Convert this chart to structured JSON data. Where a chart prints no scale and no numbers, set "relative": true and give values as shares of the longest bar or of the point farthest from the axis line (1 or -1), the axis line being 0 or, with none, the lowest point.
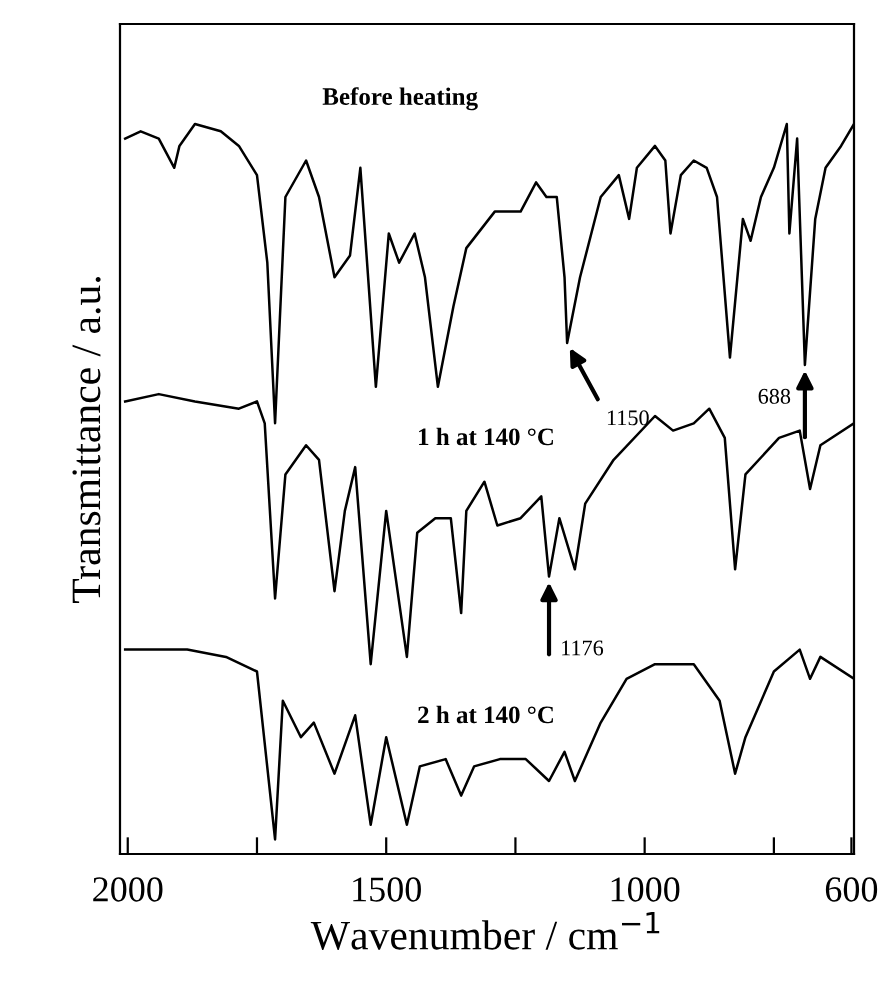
{
  "chart_data": {
    "type": "line",
    "relative": true,
    "xlabel": "Wavenumber / cm$^{−1}$",
    "ylabel": "Transmittance / a.u.",
    "xlim": [
      2015,
      595
    ],
    "xticks": [
      2000,
      {
        "value": 1750,
        "label": null
      },
      1500,
      {
        "value": 1250,
        "label": null
      },
      1000,
      {
        "value": 750,
        "label": null
      },
      600
    ],
    "grid": false,
    "legend": false,
    "marker": "none",
    "line_style": "solid",
    "series": [
      {
        "name": "Before heating",
        "color": "#000000",
        "x": [
          2005,
          1975,
          1940,
          1910,
          1900,
          1870,
          1820,
          1785,
          1750,
          1730,
          1715,
          1695,
          1655,
          1630,
          1600,
          1570,
          1550,
          1520,
          1495,
          1475,
          1445,
          1425,
          1400,
          1370,
          1345,
          1290,
          1240,
          1210,
          1190,
          1170,
          1155,
          1150,
          1125,
          1085,
          1050,
          1030,
          1015,
          980,
          960,
          950,
          930,
          905,
          880,
          860,
          835,
          810,
          795,
          775,
          750,
          725,
          720,
          705,
          690,
          670,
          650,
          620,
          595
        ],
        "values": [
          0.98,
          0.99,
          0.98,
          0.94,
          0.97,
          1.0,
          0.99,
          0.97,
          0.93,
          0.81,
          0.59,
          0.9,
          0.95,
          0.9,
          0.79,
          0.82,
          0.94,
          0.64,
          0.85,
          0.81,
          0.85,
          0.79,
          0.64,
          0.75,
          0.83,
          0.88,
          0.88,
          0.92,
          0.9,
          0.9,
          0.79,
          0.7,
          0.79,
          0.9,
          0.93,
          0.87,
          0.94,
          0.97,
          0.95,
          0.85,
          0.93,
          0.95,
          0.94,
          0.9,
          0.68,
          0.87,
          0.84,
          0.9,
          0.94,
          1.0,
          0.85,
          0.98,
          0.67,
          0.87,
          0.94,
          0.97,
          1.0
        ]
      },
      {
        "name": "1 h at 140 °C",
        "color": "#000000",
        "x": [
          2005,
          1940,
          1870,
          1785,
          1750,
          1735,
          1715,
          1695,
          1655,
          1630,
          1600,
          1580,
          1560,
          1530,
          1500,
          1460,
          1440,
          1405,
          1375,
          1355,
          1345,
          1310,
          1285,
          1240,
          1200,
          1185,
          1165,
          1135,
          1115,
          1060,
          980,
          945,
          905,
          875,
          845,
          825,
          805,
          740,
          700,
          680,
          660,
          595
        ],
        "values": [
          0.62,
          0.63,
          0.62,
          0.61,
          0.62,
          0.59,
          0.35,
          0.52,
          0.56,
          0.54,
          0.36,
          0.47,
          0.53,
          0.26,
          0.47,
          0.27,
          0.44,
          0.46,
          0.46,
          0.33,
          0.47,
          0.51,
          0.45,
          0.46,
          0.49,
          0.38,
          0.46,
          0.39,
          0.48,
          0.54,
          0.6,
          0.58,
          0.59,
          0.61,
          0.57,
          0.39,
          0.52,
          0.57,
          0.58,
          0.5,
          0.56,
          0.59
        ]
      },
      {
        "name": "2 h at 140 °C",
        "color": "#000000",
        "x": [
          2005,
          1885,
          1810,
          1750,
          1715,
          1700,
          1665,
          1640,
          1600,
          1560,
          1530,
          1500,
          1460,
          1435,
          1385,
          1355,
          1330,
          1280,
          1230,
          1185,
          1155,
          1135,
          1085,
          1035,
          980,
          905,
          855,
          825,
          805,
          750,
          700,
          680,
          660,
          595
        ],
        "values": [
          0.28,
          0.28,
          0.27,
          0.25,
          0.02,
          0.21,
          0.16,
          0.18,
          0.11,
          0.19,
          0.04,
          0.16,
          0.04,
          0.12,
          0.13,
          0.08,
          0.12,
          0.13,
          0.13,
          0.1,
          0.14,
          0.1,
          0.18,
          0.24,
          0.26,
          0.26,
          0.21,
          0.11,
          0.16,
          0.25,
          0.28,
          0.24,
          0.27,
          0.24
        ]
      }
    ],
    "annotations": [
      {
        "text": "1150",
        "x": 1150,
        "y": 0.7
      },
      {
        "text": "688",
        "x": 690,
        "y": 0.67
      },
      {
        "text": "1176",
        "x": 1185,
        "y": 0.38
      }
    ]
  }
}
